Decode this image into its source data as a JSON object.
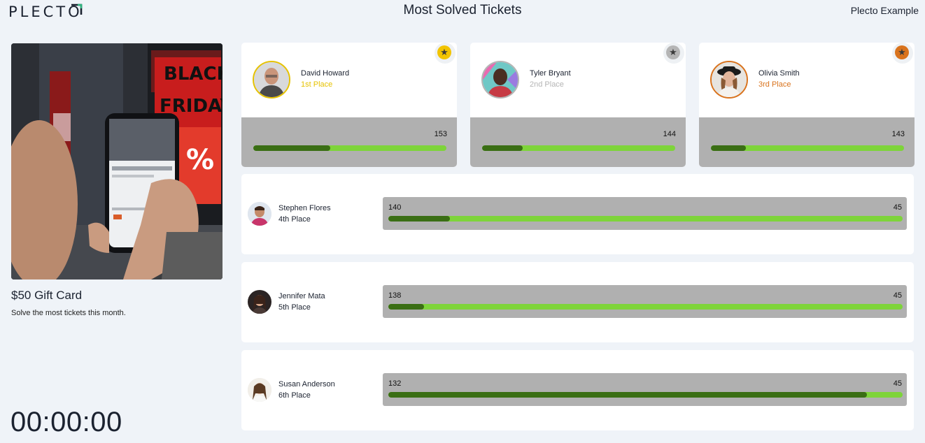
{
  "header": {
    "logo": "PLECTO",
    "title": "Most Solved Tickets",
    "account": "Plecto Example"
  },
  "prize": {
    "title": "$50 Gift Card",
    "description": "Solve the most tickets this month.",
    "timer": "00:00:00"
  },
  "podium": [
    {
      "name": "David Howard",
      "place": "1st Place",
      "value": "153",
      "progress": 0.4,
      "color": "#e6c200",
      "medal": "gold-star-icon"
    },
    {
      "name": "Tyler Bryant",
      "place": "2nd Place",
      "value": "144",
      "progress": 0.21,
      "color": "#b5b5b5",
      "medal": "silver-star-icon"
    },
    {
      "name": "Olivia Smith",
      "place": "3rd Place",
      "value": "143",
      "progress": 0.18,
      "color": "#d9731d",
      "medal": "bronze-star-icon"
    }
  ],
  "rows": [
    {
      "name": "Stephen Flores",
      "place": "4th Place",
      "value": "140",
      "target": "45",
      "progress": 0.12
    },
    {
      "name": "Jennifer Mata",
      "place": "5th Place",
      "value": "138",
      "target": "45",
      "progress": 0.07
    },
    {
      "name": "Susan Anderson",
      "place": "6th Place",
      "value": "132",
      "target": "45",
      "progress": 0.93
    }
  ],
  "colors": {
    "background": "#eff3f8",
    "bar_track": "#7ed43a",
    "bar_fill": "#3a6e14",
    "panel_gray": "#b0b0b0"
  }
}
